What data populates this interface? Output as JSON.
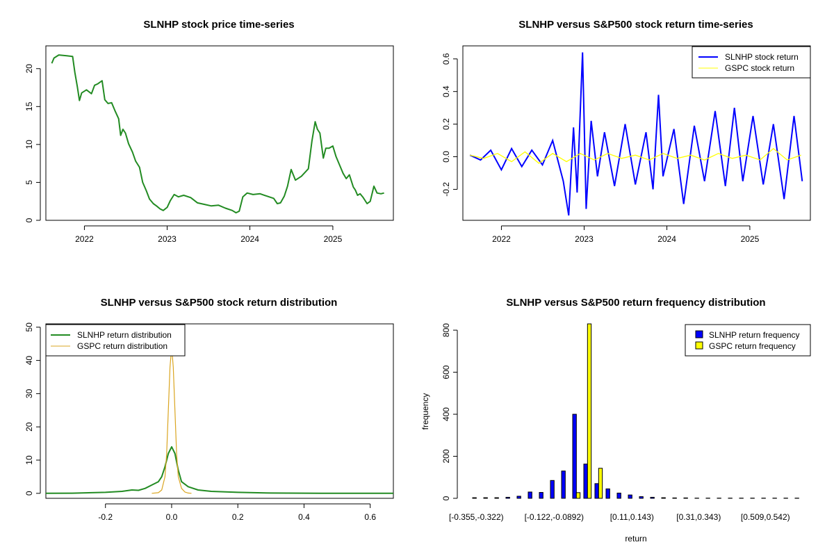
{
  "chart_data": [
    {
      "id": "price",
      "type": "line",
      "title": "SLNHP stock price time-series",
      "xlabel": "",
      "ylabel": "",
      "xlim": [
        "2021-07-15",
        "2025-09-25"
      ],
      "ylim": [
        0,
        23
      ],
      "xticks": [
        "2022-01-01",
        "2023-01-01",
        "2024-01-01",
        "2025-01-01"
      ],
      "xtick_labels": [
        "2022",
        "2023",
        "2024",
        "2025"
      ],
      "yticks": [
        0,
        5,
        10,
        15,
        20
      ],
      "color": "#228B22",
      "series": [
        {
          "x": [
            "2021-08-10",
            "2021-08-20",
            "2021-09-10",
            "2021-10-15",
            "2021-11-10",
            "2021-11-20",
            "2021-12-01",
            "2021-12-10",
            "2021-12-20",
            "2022-01-10",
            "2022-02-01",
            "2022-02-15",
            "2022-03-01",
            "2022-03-20",
            "2022-04-01",
            "2022-04-15",
            "2022-05-01",
            "2022-05-15",
            "2022-06-01",
            "2022-06-10",
            "2022-06-20",
            "2022-07-01",
            "2022-07-15",
            "2022-08-01",
            "2022-08-15",
            "2022-09-01",
            "2022-09-15",
            "2022-10-01",
            "2022-10-15",
            "2022-11-01",
            "2022-11-15",
            "2022-12-01",
            "2022-12-15",
            "2023-01-01",
            "2023-01-15",
            "2023-02-01",
            "2023-02-20",
            "2023-03-15",
            "2023-04-15",
            "2023-05-15",
            "2023-06-15",
            "2023-07-15",
            "2023-08-15",
            "2023-09-15",
            "2023-10-15",
            "2023-11-01",
            "2023-11-15",
            "2023-12-01",
            "2023-12-20",
            "2024-01-15",
            "2024-02-15",
            "2024-03-15",
            "2024-04-15",
            "2024-05-01",
            "2024-05-15",
            "2024-06-01",
            "2024-06-15",
            "2024-07-01",
            "2024-07-20",
            "2024-08-15",
            "2024-09-15",
            "2024-10-01",
            "2024-10-15",
            "2024-10-25",
            "2024-11-05",
            "2024-11-20",
            "2024-12-01",
            "2024-12-15",
            "2025-01-01",
            "2025-01-15",
            "2025-02-01",
            "2025-02-15",
            "2025-03-01",
            "2025-03-15",
            "2025-04-01",
            "2025-04-10",
            "2025-04-20",
            "2025-05-01",
            "2025-05-15",
            "2025-06-01",
            "2025-06-15",
            "2025-07-01",
            "2025-07-15",
            "2025-08-01",
            "2025-08-15"
          ],
          "y": [
            20.7,
            21.4,
            21.8,
            21.7,
            21.6,
            19.5,
            17.6,
            15.8,
            16.8,
            17.2,
            16.7,
            17.8,
            18.0,
            18.4,
            15.9,
            15.4,
            15.5,
            14.5,
            13.4,
            11.2,
            12.0,
            11.5,
            10.1,
            9.0,
            7.8,
            7.0,
            5.0,
            3.9,
            2.8,
            2.2,
            1.9,
            1.5,
            1.3,
            1.7,
            2.6,
            3.4,
            3.1,
            3.3,
            3.0,
            2.3,
            2.1,
            1.9,
            2.0,
            1.6,
            1.3,
            1.0,
            1.2,
            3.1,
            3.6,
            3.4,
            3.5,
            3.2,
            2.9,
            2.2,
            2.3,
            3.2,
            4.5,
            6.7,
            5.3,
            5.8,
            6.8,
            10.5,
            13.0,
            12.0,
            11.5,
            8.2,
            9.5,
            9.5,
            9.8,
            8.4,
            7.2,
            6.2,
            5.5,
            6.0,
            4.4,
            4.0,
            3.3,
            3.5,
            3.0,
            2.2,
            2.5,
            4.5,
            3.6,
            3.5,
            3.6
          ]
        }
      ]
    },
    {
      "id": "returns",
      "type": "line",
      "title": "SLNHP versus S&P500 stock return time-series",
      "xlabel": "",
      "ylabel": "",
      "xlim": [
        "2021-07-15",
        "2025-09-25"
      ],
      "ylim": [
        -0.39,
        0.68
      ],
      "xticks": [
        "2022-01-01",
        "2023-01-01",
        "2024-01-01",
        "2025-01-01"
      ],
      "xtick_labels": [
        "2022",
        "2023",
        "2024",
        "2025"
      ],
      "yticks": [
        -0.2,
        0.0,
        0.2,
        0.4,
        0.6
      ],
      "ytick_labels": [
        "-0.2",
        "0.0",
        "0.2",
        "0.4",
        "0.6"
      ],
      "legend_position": "top-right",
      "series": [
        {
          "name": "SLNHP stock return",
          "color": "#0000FF",
          "x": [
            "2021-08-15",
            "2021-10-01",
            "2021-11-15",
            "2022-01-01",
            "2022-02-15",
            "2022-04-01",
            "2022-05-15",
            "2022-07-01",
            "2022-08-15",
            "2022-10-01",
            "2022-10-25",
            "2022-11-15",
            "2022-12-01",
            "2022-12-25",
            "2023-01-10",
            "2023-02-01",
            "2023-03-01",
            "2023-04-01",
            "2023-05-15",
            "2023-07-01",
            "2023-08-15",
            "2023-10-01",
            "2023-11-01",
            "2023-11-25",
            "2023-12-15",
            "2024-02-01",
            "2024-03-15",
            "2024-05-01",
            "2024-06-15",
            "2024-08-01",
            "2024-09-15",
            "2024-10-25",
            "2024-12-01",
            "2025-01-15",
            "2025-03-01",
            "2025-04-15",
            "2025-06-01",
            "2025-07-15",
            "2025-08-20"
          ],
          "y": [
            0.01,
            -0.02,
            0.04,
            -0.08,
            0.05,
            -0.06,
            0.04,
            -0.05,
            0.1,
            -0.15,
            -0.36,
            0.18,
            -0.22,
            0.64,
            -0.32,
            0.22,
            -0.12,
            0.15,
            -0.18,
            0.2,
            -0.17,
            0.15,
            -0.2,
            0.38,
            -0.12,
            0.17,
            -0.29,
            0.19,
            -0.15,
            0.28,
            -0.18,
            0.3,
            -0.15,
            0.25,
            -0.17,
            0.2,
            -0.26,
            0.25,
            -0.15
          ]
        },
        {
          "name": "GSPC stock return",
          "color": "#FFFF00",
          "x": [
            "2021-08-15",
            "2021-10-15",
            "2021-12-15",
            "2022-02-15",
            "2022-04-15",
            "2022-06-15",
            "2022-08-15",
            "2022-10-15",
            "2022-12-15",
            "2023-02-15",
            "2023-04-15",
            "2023-06-15",
            "2023-08-15",
            "2023-10-15",
            "2023-12-15",
            "2024-02-15",
            "2024-04-15",
            "2024-06-15",
            "2024-08-15",
            "2024-10-15",
            "2024-12-15",
            "2025-02-15",
            "2025-04-15",
            "2025-06-15",
            "2025-08-15"
          ],
          "y": [
            0.01,
            -0.01,
            0.02,
            -0.03,
            0.03,
            -0.04,
            0.02,
            -0.03,
            0.02,
            -0.02,
            0.02,
            -0.01,
            0.01,
            -0.02,
            0.02,
            -0.01,
            0.01,
            -0.02,
            0.02,
            -0.01,
            0.01,
            -0.02,
            0.05,
            -0.02,
            0.01
          ]
        }
      ]
    },
    {
      "id": "density",
      "type": "line",
      "title": "SLNHP versus S&P500 stock return distribution",
      "xlabel": "",
      "ylabel": "",
      "xlim": [
        -0.38,
        0.67
      ],
      "ylim": [
        -1.5,
        51
      ],
      "xticks": [
        -0.2,
        0.0,
        0.2,
        0.4,
        0.6
      ],
      "xtick_labels": [
        "-0.2",
        "0.0",
        "0.2",
        "0.4",
        "0.6"
      ],
      "yticks": [
        0,
        10,
        20,
        30,
        40,
        50
      ],
      "legend_position": "top-left",
      "series": [
        {
          "name": "SLNHP return distribution",
          "color": "#228B22",
          "x": [
            -0.38,
            -0.3,
            -0.2,
            -0.15,
            -0.12,
            -0.1,
            -0.08,
            -0.06,
            -0.04,
            -0.03,
            -0.02,
            -0.01,
            0.0,
            0.01,
            0.02,
            0.03,
            0.05,
            0.08,
            0.12,
            0.2,
            0.3,
            0.45,
            0.67
          ],
          "y": [
            0,
            0.05,
            0.3,
            0.6,
            1.0,
            0.9,
            1.5,
            2.5,
            3.5,
            5.0,
            8.0,
            12.0,
            14.0,
            12.0,
            7.0,
            3.5,
            2.0,
            1.0,
            0.6,
            0.3,
            0.1,
            0.03,
            0
          ]
        },
        {
          "name": "GSPC return distribution",
          "color": "#DAA520",
          "x": [
            -0.06,
            -0.04,
            -0.03,
            -0.02,
            -0.015,
            -0.01,
            -0.005,
            0.0,
            0.005,
            0.01,
            0.015,
            0.02,
            0.03,
            0.04,
            0.05,
            0.06
          ],
          "y": [
            0,
            0.2,
            1.0,
            5.0,
            12.0,
            25.0,
            38.0,
            44.0,
            38.0,
            25.0,
            12.0,
            5.0,
            1.5,
            0.4,
            0.1,
            0
          ]
        }
      ]
    },
    {
      "id": "frequency",
      "type": "bar",
      "title": "SLNHP versus S&P500 return frequency distribution",
      "xlabel": "return",
      "ylabel": "frequency",
      "ylim": [
        0,
        830
      ],
      "yticks": [
        0,
        200,
        400,
        600,
        800
      ],
      "legend_position": "top-right",
      "categories": [
        "[-0.355,-0.322)",
        "[-0.322,-0.289)",
        "[-0.289,-0.255)",
        "[-0.255,-0.222)",
        "[-0.222,-0.189)",
        "[-0.189,-0.155)",
        "[-0.155,-0.122)",
        "[-0.122,-0.0892)",
        "[-0.0892,-0.0559)",
        "[-0.0559,-0.0226)",
        "[-0.0226,0.0108)",
        "[0.0108,0.0441)",
        "[0.0441,0.0775)",
        "[0.0775,0.11)",
        "[0.11,0.143)",
        "[0.143,0.176)",
        "[0.176,0.21)",
        "[0.21,0.243)",
        "[0.243,0.276)",
        "[0.276,0.31)",
        "[0.31,0.343)",
        "[0.343,0.376)",
        "[0.376,0.409)",
        "[0.409,0.442)",
        "[0.442,0.476)",
        "[0.476,0.509)",
        "[0.509,0.542)",
        "[0.542,0.575)",
        "[0.575,0.609)",
        "[0.609,0.642)"
      ],
      "visible_category_labels": [
        "[-0.355,-0.322)",
        "[-0.122,-0.0892)",
        "[0.11,0.143)",
        "[0.31,0.343)",
        "[0.509,0.542)"
      ],
      "series": [
        {
          "name": "SLNHP return frequency",
          "color": "#0000FF",
          "values": [
            3,
            3,
            3,
            5,
            10,
            30,
            28,
            85,
            130,
            400,
            163,
            70,
            45,
            25,
            16,
            8,
            5,
            3,
            2,
            2,
            1,
            1,
            1,
            1,
            1,
            1,
            1,
            1,
            1,
            1
          ]
        },
        {
          "name": "GSPC return frequency",
          "color": "#FFFF00",
          "values": [
            0,
            0,
            0,
            0,
            0,
            0,
            0,
            0,
            0,
            27,
            830,
            143,
            0,
            0,
            0,
            0,
            0,
            0,
            0,
            0,
            0,
            0,
            0,
            0,
            0,
            0,
            0,
            0,
            0,
            0
          ]
        }
      ]
    }
  ]
}
